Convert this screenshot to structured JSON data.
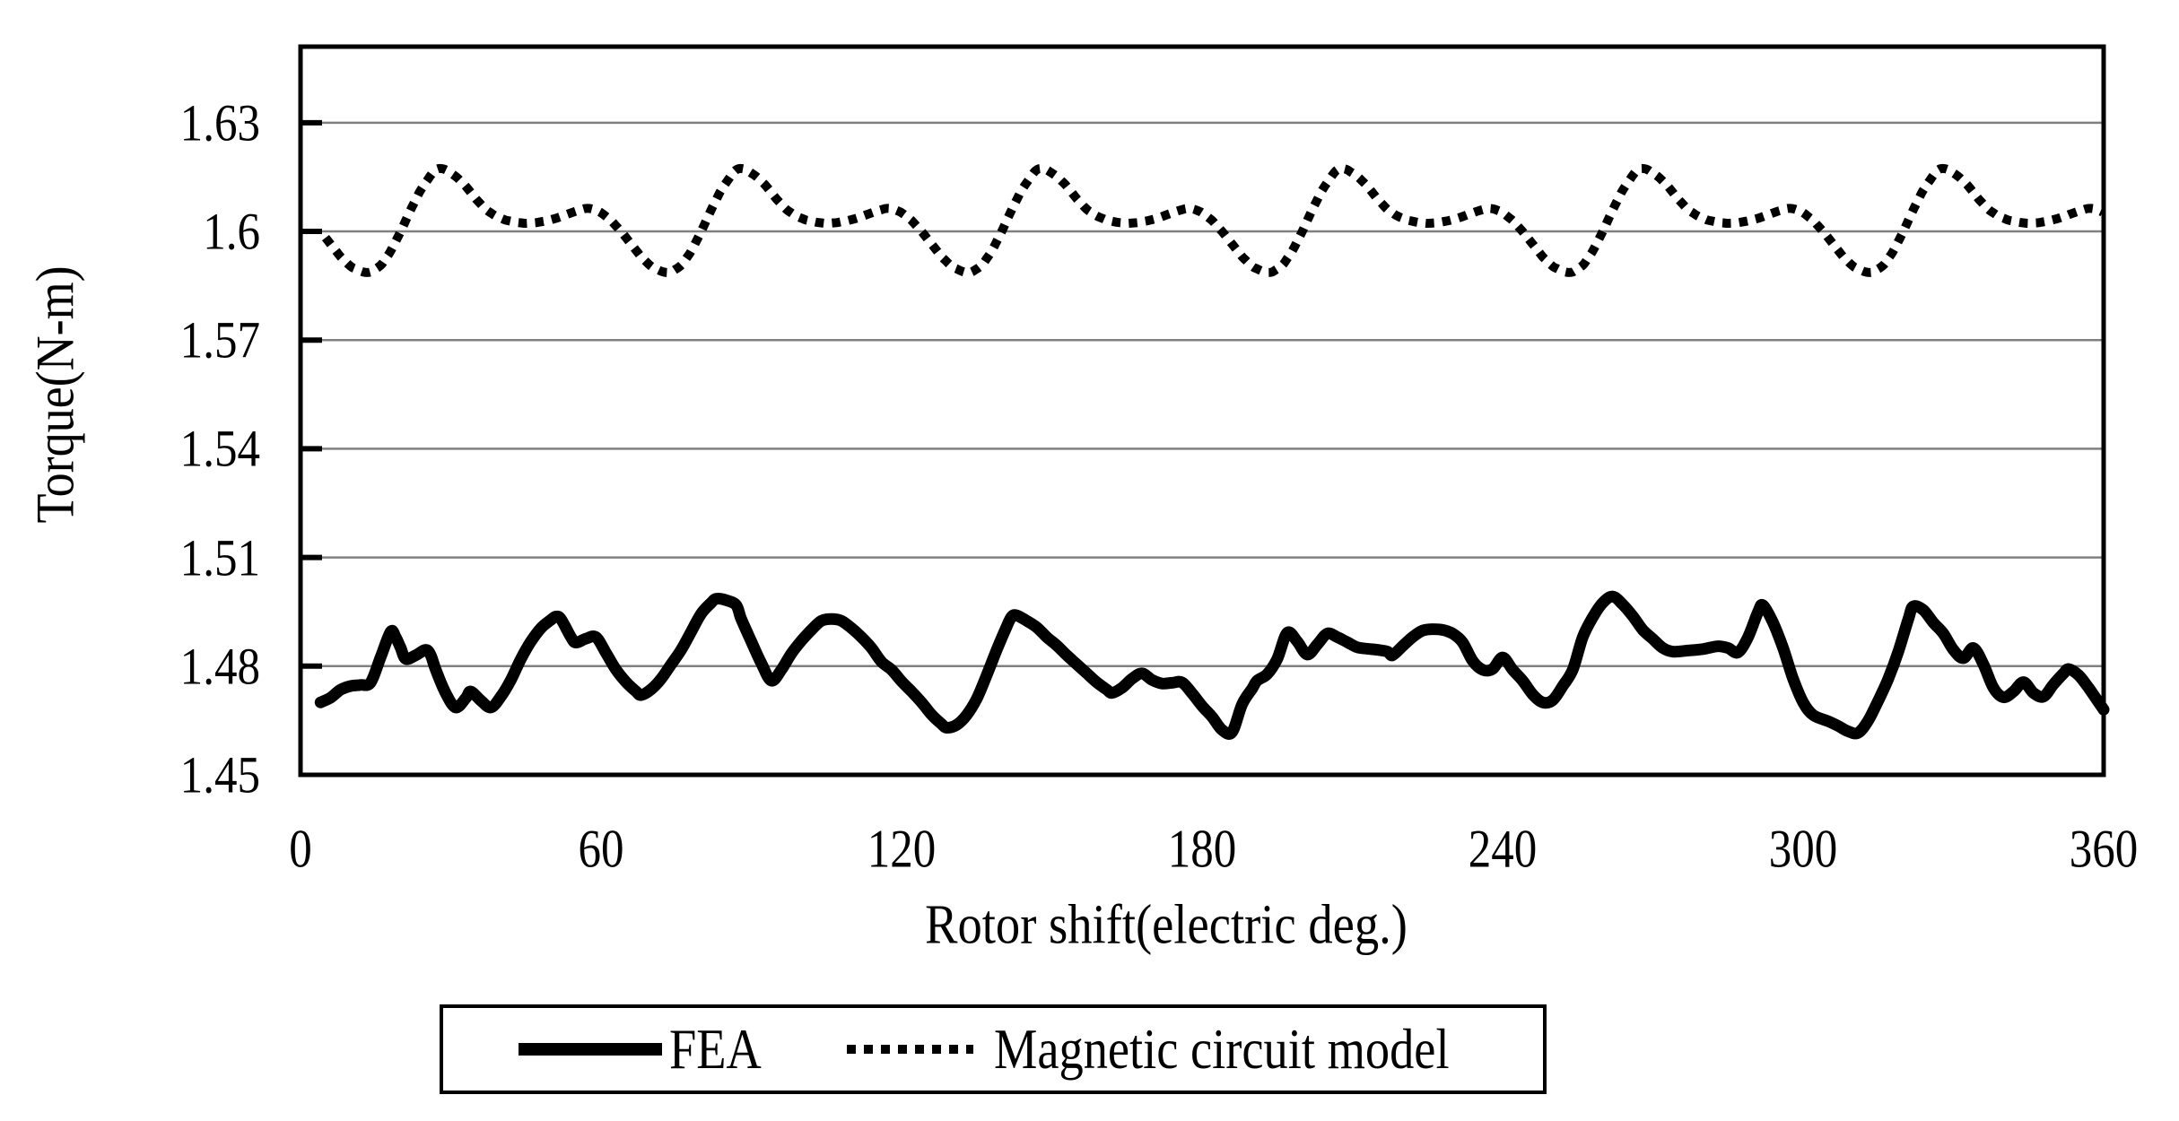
{
  "figure": {
    "background": "#ffffff",
    "text_color": "#000000",
    "grid_color": "#808080",
    "axis_color": "#000000"
  },
  "chart_data": {
    "type": "line",
    "title": "",
    "xlabel": "Rotor shift(electric deg.)",
    "ylabel": "Torque(N-m)",
    "xlim": [
      0,
      360
    ],
    "ylim": [
      1.45,
      1.651
    ],
    "grid": "horizontal-only",
    "legend_position": "below-chart",
    "x_ticks": [
      {
        "label": "0",
        "value": 0
      },
      {
        "label": "60",
        "value": 60
      },
      {
        "label": "120",
        "value": 120
      },
      {
        "label": "180",
        "value": 180
      },
      {
        "label": "240",
        "value": 240
      },
      {
        "label": "300",
        "value": 300
      },
      {
        "label": "360",
        "value": 360
      }
    ],
    "y_ticks": [
      {
        "label": "1.63",
        "value": 1.63
      },
      {
        "label": "1.6",
        "value": 1.6
      },
      {
        "label": "1.57",
        "value": 1.57
      },
      {
        "label": "1.54",
        "value": 1.54
      },
      {
        "label": "1.51",
        "value": 1.51
      },
      {
        "label": "1.48",
        "value": 1.48
      },
      {
        "label": "1.45",
        "value": 1.45
      }
    ],
    "series": [
      {
        "name": "FEA",
        "style": "solid",
        "color": "#000000",
        "stroke_width": 13,
        "points": [
          [
            4,
            1.47
          ],
          [
            6,
            1.4713
          ],
          [
            8,
            1.4735
          ],
          [
            10,
            1.4745
          ],
          [
            12,
            1.4748
          ],
          [
            14,
            1.4755
          ],
          [
            16,
            1.4825
          ],
          [
            18,
            1.4895
          ],
          [
            19,
            1.488
          ],
          [
            20,
            1.485
          ],
          [
            21,
            1.482
          ],
          [
            23,
            1.483
          ],
          [
            25,
            1.4845
          ],
          [
            26,
            1.483
          ],
          [
            27,
            1.479
          ],
          [
            29,
            1.4725
          ],
          [
            31,
            1.4686
          ],
          [
            33,
            1.4712
          ],
          [
            34,
            1.473
          ],
          [
            36,
            1.4705
          ],
          [
            38,
            1.4686
          ],
          [
            40,
            1.4716
          ],
          [
            42,
            1.4762
          ],
          [
            44,
            1.482
          ],
          [
            46,
            1.4868
          ],
          [
            48,
            1.4905
          ],
          [
            50,
            1.4928
          ],
          [
            51,
            1.4937
          ],
          [
            52,
            1.493
          ],
          [
            54,
            1.488
          ],
          [
            55,
            1.4865
          ],
          [
            57,
            1.4876
          ],
          [
            59,
            1.488
          ],
          [
            61,
            1.4836
          ],
          [
            63,
            1.479
          ],
          [
            65,
            1.4756
          ],
          [
            67,
            1.473
          ],
          [
            68,
            1.472
          ],
          [
            70,
            1.4736
          ],
          [
            72,
            1.4765
          ],
          [
            74,
            1.4805
          ],
          [
            76,
            1.4845
          ],
          [
            78,
            1.4895
          ],
          [
            80,
            1.4945
          ],
          [
            82,
            1.4975
          ],
          [
            83,
            1.4986
          ],
          [
            85,
            1.4982
          ],
          [
            87,
            1.4968
          ],
          [
            88,
            1.493
          ],
          [
            90,
            1.4868
          ],
          [
            92,
            1.4808
          ],
          [
            94,
            1.476
          ],
          [
            96,
            1.479
          ],
          [
            98,
            1.4835
          ],
          [
            100,
            1.487
          ],
          [
            102,
            1.49
          ],
          [
            104,
            1.4925
          ],
          [
            106,
            1.493
          ],
          [
            108,
            1.4925
          ],
          [
            110,
            1.4905
          ],
          [
            112,
            1.488
          ],
          [
            114,
            1.485
          ],
          [
            116,
            1.4812
          ],
          [
            118,
            1.479
          ],
          [
            120,
            1.4758
          ],
          [
            122,
            1.473
          ],
          [
            124,
            1.47
          ],
          [
            126,
            1.4666
          ],
          [
            128,
            1.464
          ],
          [
            129,
            1.463
          ],
          [
            131,
            1.4638
          ],
          [
            133,
            1.4665
          ],
          [
            135,
            1.471
          ],
          [
            137,
            1.4775
          ],
          [
            139,
            1.4845
          ],
          [
            141,
            1.491
          ],
          [
            142,
            1.4937
          ],
          [
            143,
            1.494
          ],
          [
            145,
            1.4925
          ],
          [
            147,
            1.4907
          ],
          [
            149,
            1.488
          ],
          [
            151,
            1.4857
          ],
          [
            153,
            1.483
          ],
          [
            155,
            1.4805
          ],
          [
            157,
            1.478
          ],
          [
            159,
            1.4755
          ],
          [
            161,
            1.4735
          ],
          [
            162,
            1.4726
          ],
          [
            164,
            1.474
          ],
          [
            166,
            1.4765
          ],
          [
            168,
            1.478
          ],
          [
            170,
            1.4762
          ],
          [
            172,
            1.4752
          ],
          [
            174,
            1.4754
          ],
          [
            176,
            1.4755
          ],
          [
            178,
            1.4725
          ],
          [
            180,
            1.469
          ],
          [
            182,
            1.466
          ],
          [
            184,
            1.4624
          ],
          [
            186,
            1.4618
          ],
          [
            188,
            1.4695
          ],
          [
            190,
            1.4738
          ],
          [
            191,
            1.476
          ],
          [
            193,
            1.4778
          ],
          [
            195,
            1.482
          ],
          [
            197,
            1.4892
          ],
          [
            199,
            1.4868
          ],
          [
            201,
            1.4832
          ],
          [
            203,
            1.486
          ],
          [
            205,
            1.489
          ],
          [
            207,
            1.488
          ],
          [
            209,
            1.4866
          ],
          [
            211,
            1.4852
          ],
          [
            213,
            1.4848
          ],
          [
            215,
            1.4845
          ],
          [
            217,
            1.484
          ],
          [
            218,
            1.483
          ],
          [
            220,
            1.4855
          ],
          [
            222,
            1.488
          ],
          [
            224,
            1.4898
          ],
          [
            226,
            1.4902
          ],
          [
            228,
            1.49
          ],
          [
            230,
            1.489
          ],
          [
            232,
            1.4866
          ],
          [
            234,
            1.4815
          ],
          [
            236,
            1.479
          ],
          [
            238,
            1.4792
          ],
          [
            240,
            1.4824
          ],
          [
            242,
            1.479
          ],
          [
            244,
            1.476
          ],
          [
            246,
            1.4722
          ],
          [
            248,
            1.47
          ],
          [
            250,
            1.4706
          ],
          [
            252,
            1.4745
          ],
          [
            254,
            1.479
          ],
          [
            256,
            1.488
          ],
          [
            258,
            1.4935
          ],
          [
            260,
            1.4975
          ],
          [
            262,
            1.4992
          ],
          [
            264,
            1.497
          ],
          [
            266,
            1.4938
          ],
          [
            268,
            1.49
          ],
          [
            270,
            1.4875
          ],
          [
            272,
            1.485
          ],
          [
            274,
            1.484
          ],
          [
            277,
            1.4843
          ],
          [
            280,
            1.4847
          ],
          [
            283,
            1.4855
          ],
          [
            285,
            1.485
          ],
          [
            287,
            1.4838
          ],
          [
            289,
            1.488
          ],
          [
            291,
            1.495
          ],
          [
            292,
            1.4968
          ],
          [
            294,
            1.492
          ],
          [
            296,
            1.485
          ],
          [
            298,
            1.4765
          ],
          [
            300,
            1.47
          ],
          [
            302,
            1.4665
          ],
          [
            305,
            1.4648
          ],
          [
            307,
            1.4635
          ],
          [
            309,
            1.462
          ],
          [
            311,
            1.4616
          ],
          [
            313,
            1.465
          ],
          [
            315,
            1.4705
          ],
          [
            317,
            1.4765
          ],
          [
            319,
            1.484
          ],
          [
            321,
            1.493
          ],
          [
            322,
            1.4965
          ],
          [
            324,
            1.4955
          ],
          [
            326,
            1.492
          ],
          [
            328,
            1.489
          ],
          [
            330,
            1.4845
          ],
          [
            332,
            1.4822
          ],
          [
            334,
            1.485
          ],
          [
            336,
            1.4805
          ],
          [
            338,
            1.474
          ],
          [
            340,
            1.4714
          ],
          [
            342,
            1.473
          ],
          [
            344,
            1.4756
          ],
          [
            346,
            1.4726
          ],
          [
            348,
            1.4716
          ],
          [
            350,
            1.475
          ],
          [
            352,
            1.478
          ],
          [
            353,
            1.4792
          ],
          [
            355,
            1.4775
          ],
          [
            357,
            1.474
          ],
          [
            359,
            1.47
          ],
          [
            360,
            1.468
          ]
        ]
      },
      {
        "name": "Magnetic circuit model",
        "style": "dotted",
        "color": "#000000",
        "stroke_width": 10,
        "x_start": 5,
        "x_end": 360,
        "period": 60,
        "period_keyframes": [
          [
            0,
            1.6052
          ],
          [
            2,
            1.603
          ],
          [
            4,
            1.6
          ],
          [
            6,
            1.5965
          ],
          [
            8,
            1.593
          ],
          [
            10,
            1.5903
          ],
          [
            12,
            1.589
          ],
          [
            13,
            1.5886
          ],
          [
            14,
            1.5888
          ],
          [
            16,
            1.5905
          ],
          [
            18,
            1.5945
          ],
          [
            20,
            1.6
          ],
          [
            22,
            1.606
          ],
          [
            24,
            1.6115
          ],
          [
            26,
            1.6155
          ],
          [
            27,
            1.6172
          ],
          [
            28,
            1.6174
          ],
          [
            29,
            1.617
          ],
          [
            31,
            1.6152
          ],
          [
            33,
            1.6125
          ],
          [
            35,
            1.609
          ],
          [
            37,
            1.606
          ],
          [
            39,
            1.6042
          ],
          [
            41,
            1.6031
          ],
          [
            43,
            1.6025
          ],
          [
            45,
            1.6022
          ],
          [
            47,
            1.6024
          ],
          [
            49,
            1.6029
          ],
          [
            51,
            1.6036
          ],
          [
            53,
            1.6046
          ],
          [
            55,
            1.6056
          ],
          [
            57,
            1.6064
          ],
          [
            58,
            1.6063
          ],
          [
            59,
            1.6058
          ],
          [
            60,
            1.6052
          ]
        ]
      }
    ]
  },
  "legend": {
    "items": [
      {
        "label": "FEA",
        "style": "solid"
      },
      {
        "label": "Magnetic circuit model",
        "style": "dotted"
      }
    ]
  }
}
